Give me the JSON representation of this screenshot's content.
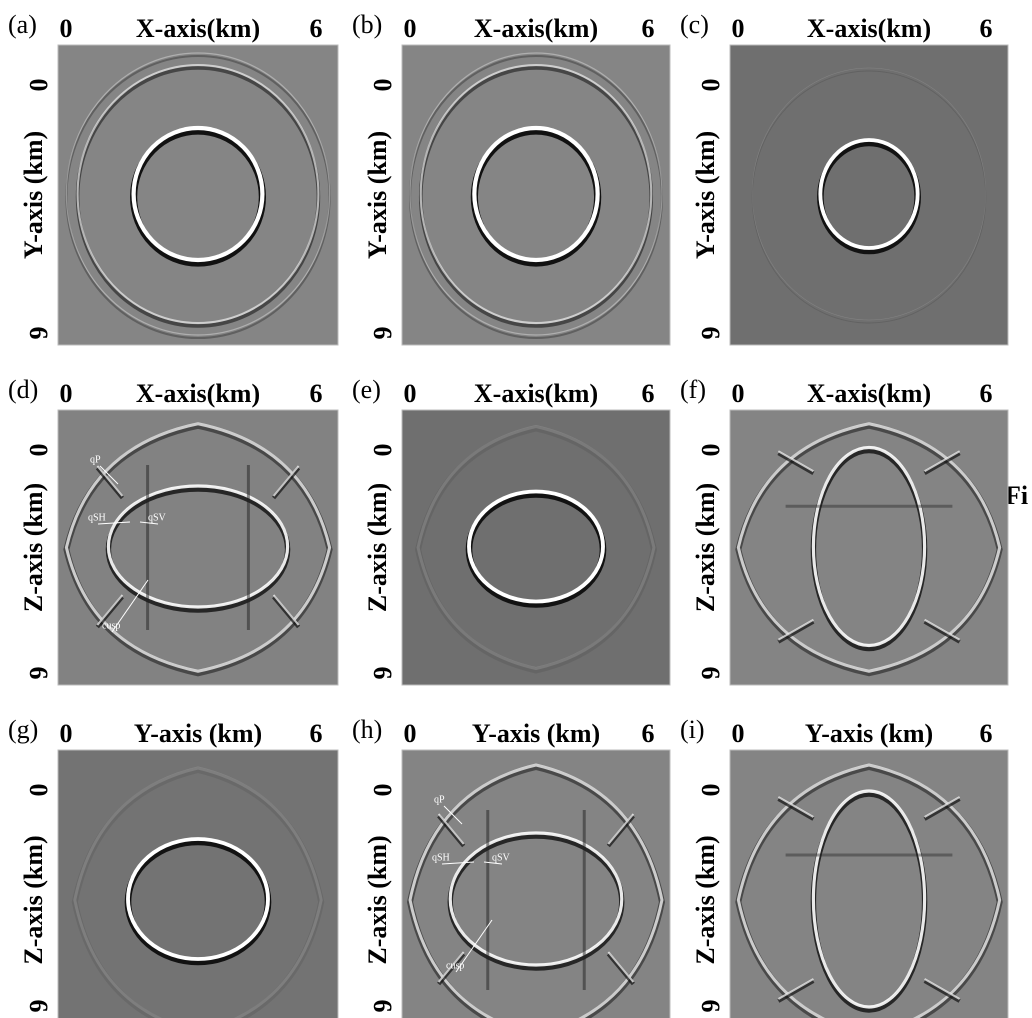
{
  "panels": [
    {
      "label": "(a)",
      "x_axis": {
        "title": "X-axis(km)",
        "ticks": [
          "0",
          "6"
        ]
      },
      "y_axis": {
        "title": "Y-axis (km)",
        "ticks": [
          "0",
          "6"
        ]
      }
    },
    {
      "label": "(b)",
      "x_axis": {
        "title": "X-axis(km)",
        "ticks": [
          "0",
          "6"
        ]
      },
      "y_axis": {
        "title": "Y-axis (km)",
        "ticks": [
          "0",
          "6"
        ]
      }
    },
    {
      "label": "(c)",
      "x_axis": {
        "title": "X-axis(km)",
        "ticks": [
          "0",
          "6"
        ]
      },
      "y_axis": {
        "title": "Y-axis (km)",
        "ticks": [
          "0",
          "6"
        ]
      }
    },
    {
      "label": "(d)",
      "x_axis": {
        "title": "X-axis(km)",
        "ticks": [
          "0",
          "6"
        ]
      },
      "y_axis": {
        "title": "Z-axis (km)",
        "ticks": [
          "0",
          "6"
        ]
      },
      "annotations": [
        "qP",
        "qSH",
        "qSV",
        "cusp"
      ]
    },
    {
      "label": "(e)",
      "x_axis": {
        "title": "X-axis(km)",
        "ticks": [
          "0",
          "6"
        ]
      },
      "y_axis": {
        "title": "Z-axis (km)",
        "ticks": [
          "0",
          "6"
        ]
      }
    },
    {
      "label": "(f)",
      "x_axis": {
        "title": "X-axis(km)",
        "ticks": [
          "0",
          "6"
        ]
      },
      "y_axis": {
        "title": "Z-axis (km)",
        "ticks": [
          "0",
          "6"
        ]
      }
    },
    {
      "label": "(g)",
      "x_axis": {
        "title": "Y-axis (km)",
        "ticks": [
          "0",
          "6"
        ]
      },
      "y_axis": {
        "title": "Z-axis (km)",
        "ticks": [
          "0",
          "6"
        ]
      }
    },
    {
      "label": "(h)",
      "x_axis": {
        "title": "Y-axis (km)",
        "ticks": [
          "0",
          "6"
        ]
      },
      "y_axis": {
        "title": "Z-axis (km)",
        "ticks": [
          "0",
          "6"
        ]
      },
      "annotations": [
        "qP",
        "qSH",
        "qSV",
        "cusp"
      ]
    },
    {
      "label": "(i)",
      "x_axis": {
        "title": "Y-axis (km)",
        "ticks": [
          "0",
          "6"
        ]
      },
      "y_axis": {
        "title": "Z-axis (km)",
        "ticks": [
          "0",
          "6"
        ]
      }
    }
  ],
  "fragment": "Fi"
}
